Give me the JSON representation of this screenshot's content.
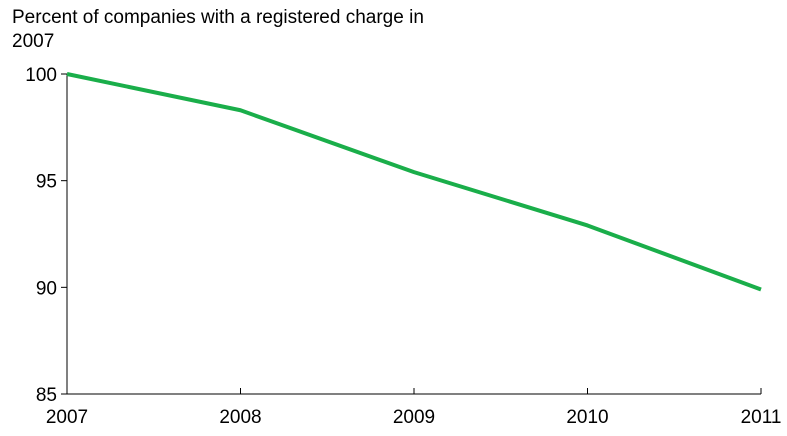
{
  "chart_data": {
    "type": "line",
    "title": "Percent of companies with a registered charge in 2007",
    "xlabel": "",
    "ylabel": "",
    "x": [
      2007,
      2008,
      2009,
      2010,
      2011
    ],
    "x_tick_labels": [
      "2007",
      "2008",
      "2009",
      "2010",
      "2011"
    ],
    "y_tick_labels": [
      "85",
      "90",
      "95",
      "100"
    ],
    "y_ticks": [
      85,
      90,
      95,
      100
    ],
    "ylim": [
      85,
      100
    ],
    "xlim": [
      2007,
      2011
    ],
    "grid": false,
    "legend": "none",
    "series": [
      {
        "values": [
          100,
          98.3,
          95.4,
          92.9,
          89.9
        ],
        "color": "#1aae4a"
      }
    ]
  }
}
